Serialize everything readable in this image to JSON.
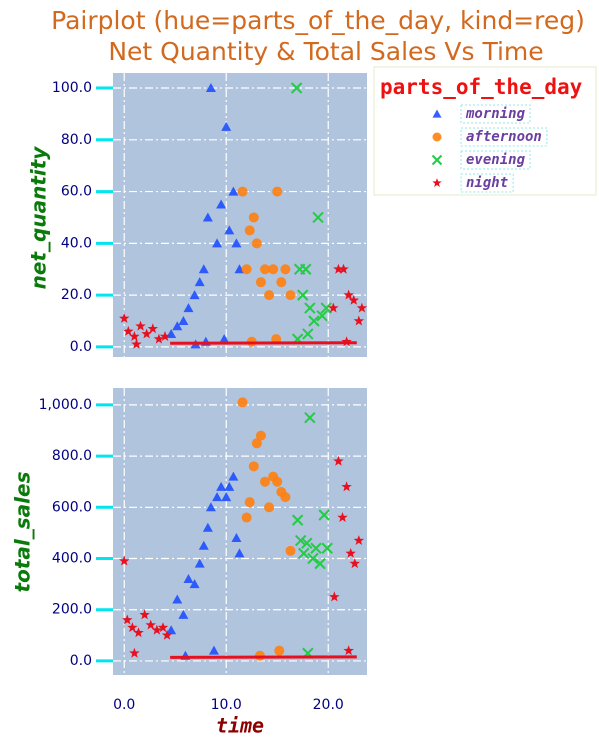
{
  "chart_data": [
    {
      "type": "scatter",
      "title": [
        "Pairplot (hue=parts_of_the_day, kind=reg)",
        "Net Quantity & Total Sales Vs Time"
      ],
      "ylabel": "net_quantity",
      "xlim": [
        -1.1,
        23.8
      ],
      "ylim": [
        -3.9,
        105.8
      ],
      "xticks": [
        0,
        10,
        20
      ],
      "yticks": [
        {
          "value": 0,
          "label": "0.0"
        },
        {
          "value": 20,
          "label": "20.0"
        },
        {
          "value": 40,
          "label": "40.0"
        },
        {
          "value": 60,
          "label": "60.0"
        },
        {
          "value": 80,
          "label": "80.0"
        },
        {
          "value": 100,
          "label": "100.0"
        }
      ],
      "grid": true,
      "legend": {
        "title": "parts_of_the_day",
        "corner": "outside upper right"
      },
      "series": [
        {
          "name": "morning",
          "color": "#1f4fff",
          "marker": "triangle",
          "x": [
            4.6,
            5.2,
            5.8,
            6.3,
            6.9,
            7.4,
            7.8,
            8.2,
            8.5,
            9.1,
            9.5,
            10.0,
            10.3,
            10.7,
            11.0,
            11.3,
            8.0,
            9.8,
            7.0
          ],
          "y": [
            5,
            8,
            10,
            15,
            20,
            25,
            30,
            50,
            100,
            40,
            55,
            85,
            45,
            60,
            40,
            30,
            2,
            3,
            1
          ]
        },
        {
          "name": "afternoon",
          "color": "#ff7f0e",
          "marker": "circle",
          "x": [
            11.6,
            12.0,
            12.3,
            12.7,
            13.0,
            13.4,
            13.8,
            14.2,
            14.6,
            15.0,
            15.4,
            15.8,
            16.3,
            12.5,
            14.9
          ],
          "y": [
            60,
            30,
            45,
            50,
            40,
            25,
            30,
            20,
            30,
            60,
            25,
            30,
            20,
            2,
            3
          ]
        },
        {
          "name": "evening",
          "color": "#22cc44",
          "marker": "x",
          "x": [
            16.9,
            17.2,
            17.5,
            17.8,
            18.2,
            18.6,
            19.0,
            19.4,
            19.8,
            17.0,
            18.0
          ],
          "y": [
            100,
            30,
            20,
            30,
            15,
            10,
            50,
            12,
            15,
            3,
            5
          ]
        },
        {
          "name": "night",
          "color": "#e8101e",
          "marker": "star",
          "x": [
            0.0,
            0.4,
            1.0,
            1.6,
            2.2,
            2.8,
            3.4,
            4.0,
            20.5,
            21.0,
            21.5,
            22.0,
            22.5,
            23.0,
            23.3,
            1.2,
            21.8
          ],
          "y": [
            11,
            6,
            4,
            8,
            5,
            7,
            3,
            4,
            15,
            30,
            30,
            20,
            18,
            10,
            15,
            1,
            2
          ]
        }
      ],
      "regression_line": {
        "color": "#e8101e",
        "x": [
          4.5,
          22.8
        ],
        "y": [
          1.4,
          1.6
        ]
      }
    },
    {
      "type": "scatter",
      "xlabel": "time",
      "ylabel": "total_sales",
      "xlim": [
        -1.1,
        23.8
      ],
      "ylim": [
        -55,
        1066
      ],
      "xticks": [
        {
          "value": 0,
          "label": "0.0"
        },
        {
          "value": 10,
          "label": "10.0"
        },
        {
          "value": 20,
          "label": "20.0"
        }
      ],
      "yticks": [
        {
          "value": 0,
          "label": "0.0"
        },
        {
          "value": 200,
          "label": "200.0"
        },
        {
          "value": 400,
          "label": "400.0"
        },
        {
          "value": 600,
          "label": "600.0"
        },
        {
          "value": 800,
          "label": "800.0"
        },
        {
          "value": 1000,
          "label": "1,000.0"
        }
      ],
      "grid": true,
      "series": [
        {
          "color": "#1f4fff",
          "marker": "triangle",
          "x": [
            4.6,
            5.2,
            5.8,
            6.3,
            6.9,
            7.4,
            7.8,
            8.2,
            8.5,
            9.1,
            9.5,
            10.0,
            10.3,
            10.7,
            11.0,
            11.3,
            6.0,
            8.8
          ],
          "y": [
            120,
            240,
            180,
            320,
            300,
            380,
            450,
            520,
            600,
            640,
            680,
            640,
            680,
            720,
            480,
            420,
            20,
            40
          ]
        },
        {
          "color": "#ff7f0e",
          "marker": "circle",
          "x": [
            11.6,
            12.0,
            12.3,
            12.7,
            13.0,
            13.4,
            13.8,
            14.2,
            14.6,
            15.0,
            15.4,
            15.8,
            16.3,
            13.3,
            15.2
          ],
          "y": [
            1010,
            560,
            620,
            760,
            850,
            880,
            700,
            600,
            720,
            700,
            660,
            640,
            430,
            20,
            40
          ]
        },
        {
          "color": "#22cc44",
          "marker": "x",
          "x": [
            17.0,
            17.3,
            17.6,
            17.9,
            18.2,
            18.5,
            18.8,
            19.2,
            19.6,
            19.9,
            18.0
          ],
          "y": [
            550,
            470,
            420,
            460,
            950,
            400,
            440,
            380,
            570,
            440,
            30
          ]
        },
        {
          "color": "#e8101e",
          "marker": "star",
          "x": [
            0.0,
            0.3,
            0.8,
            1.4,
            2.0,
            2.6,
            3.2,
            3.8,
            4.2,
            20.6,
            21.0,
            21.4,
            21.8,
            22.2,
            22.6,
            23.0,
            1.0,
            22.0
          ],
          "y": [
            390,
            160,
            130,
            110,
            180,
            140,
            120,
            130,
            100,
            250,
            780,
            560,
            680,
            420,
            380,
            470,
            30,
            40
          ]
        }
      ],
      "regression_line": {
        "color": "#e8101e",
        "x": [
          4.5,
          22.8
        ],
        "y": [
          14,
          16
        ]
      }
    }
  ]
}
